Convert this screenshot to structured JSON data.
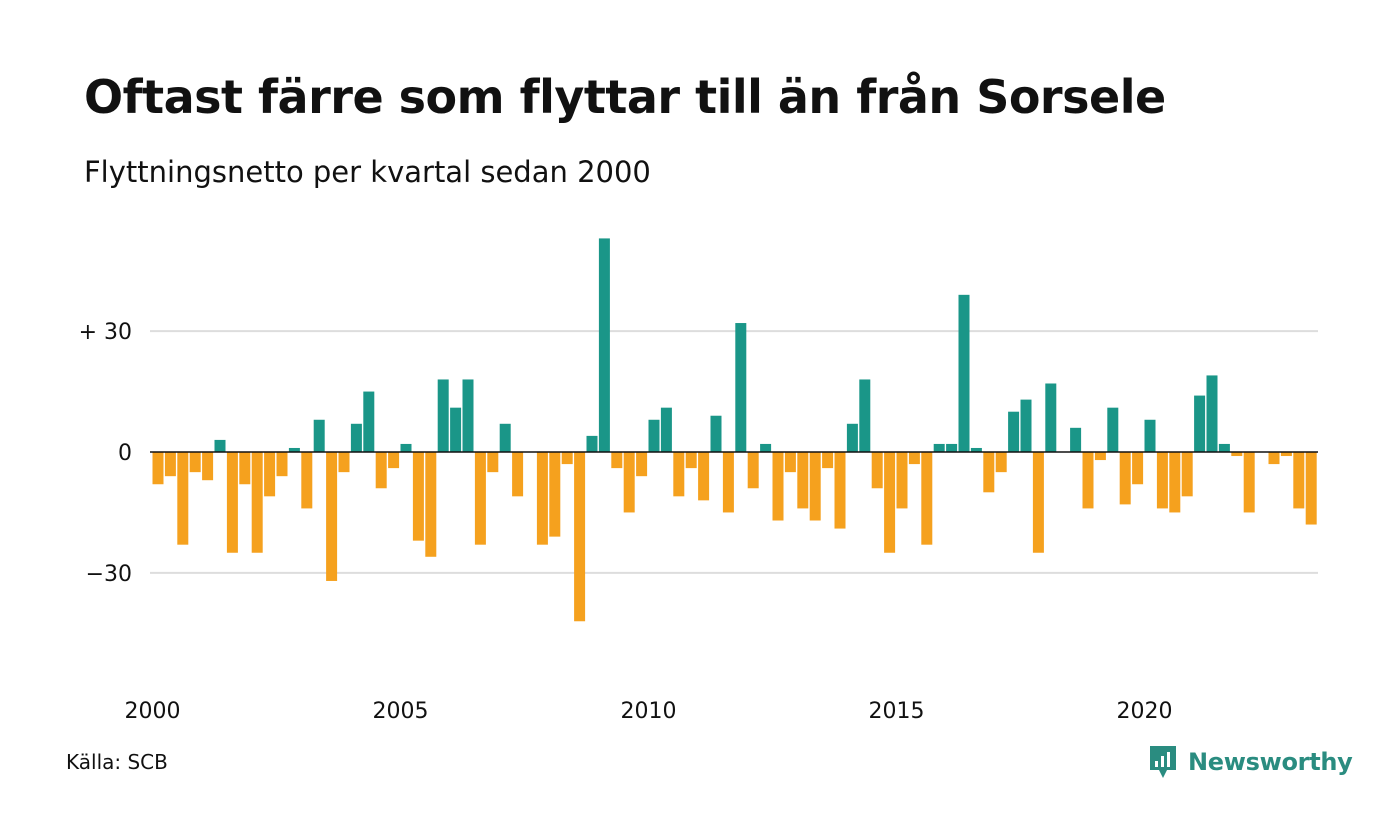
{
  "header": {
    "title": "Oftast färre som flyttar till än från Sorsele",
    "subtitle": "Flyttningsnetto per kvartal sedan 2000"
  },
  "footer": {
    "source": "Källa: SCB",
    "brand": "Newsworthy",
    "brand_icon": "newsworthy-logo-icon"
  },
  "colors": {
    "positive": "#1a9688",
    "negative": "#f5a11e",
    "grid": "#dddddd",
    "zero_line": "#111111"
  },
  "chart_data": {
    "type": "bar",
    "title": "Oftast färre som flyttar till än från Sorsele",
    "subtitle": "Flyttningsnetto per kvartal sedan 2000",
    "xlabel": "",
    "ylabel": "",
    "x_start": "2000 Q1",
    "frequency": "quarterly",
    "x_ticks": [
      "2000",
      "2005",
      "2010",
      "2015",
      "2020"
    ],
    "y_ticks": [
      {
        "value": 30,
        "label": "+ 30"
      },
      {
        "value": 0,
        "label": "0"
      },
      {
        "value": -30,
        "label": "−30"
      }
    ],
    "ylim": [
      -50,
      55
    ],
    "grid": true,
    "values": [
      -8,
      -6,
      -23,
      -5,
      -7,
      3,
      -25,
      -8,
      -25,
      -11,
      -6,
      1,
      -14,
      8,
      -32,
      -5,
      7,
      15,
      -9,
      -4,
      2,
      -22,
      -26,
      18,
      11,
      18,
      -23,
      -5,
      7,
      -11,
      0,
      -23,
      -21,
      -3,
      -42,
      4,
      53,
      -4,
      -15,
      -6,
      8,
      11,
      -11,
      -4,
      -12,
      9,
      -15,
      32,
      -9,
      2,
      -17,
      -5,
      -14,
      -17,
      -4,
      -19,
      7,
      18,
      -9,
      -25,
      -14,
      -3,
      -23,
      2,
      2,
      39,
      1,
      -10,
      -5,
      10,
      13,
      -25,
      17,
      0,
      6,
      -14,
      -2,
      11,
      -13,
      -8,
      8,
      -14,
      -15,
      -11,
      14,
      19,
      2,
      -1,
      -15,
      0,
      -3,
      -1,
      -14,
      -18
    ]
  }
}
